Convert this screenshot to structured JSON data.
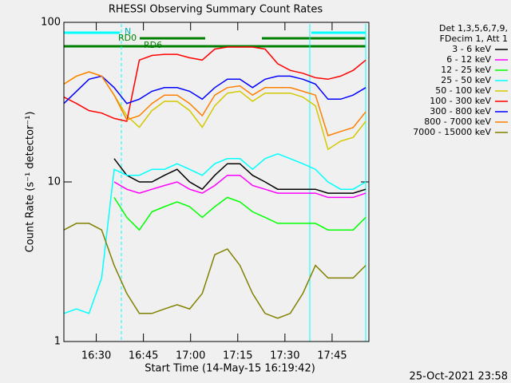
{
  "chart_data": {
    "type": "line",
    "title": "RHESSI Observing Summary Count Rates",
    "xlabel": "Start Time (14-May-15 16:19:42)",
    "ylabel": "Count Rate (s⁻¹ detector⁻¹)",
    "legend_title": [
      "Det 1,3,5,6,7,9,",
      "FDecim 1, Att 1"
    ],
    "footer": "25-Oct-2021 23:58",
    "annotations": [
      "N",
      "RD0",
      "RD6"
    ],
    "log_y": true,
    "legend": "right",
    "xlim": [
      0,
      97
    ],
    "xticks": [
      {
        "value": 10.3,
        "label": "16:30"
      },
      {
        "value": 25.3,
        "label": "16:45"
      },
      {
        "value": 40.3,
        "label": "17:00"
      },
      {
        "value": 55.3,
        "label": "17:15"
      },
      {
        "value": 70.3,
        "label": "17:30"
      },
      {
        "value": 85.3,
        "label": "17:45"
      }
    ],
    "ylim": [
      1,
      100
    ],
    "yticks": [
      1,
      10,
      100
    ],
    "x": [
      0,
      4,
      8,
      12,
      16,
      20,
      24,
      28,
      32,
      36,
      40,
      44,
      48,
      52,
      56,
      60,
      64,
      68,
      72,
      76,
      80,
      84,
      88,
      92,
      96
    ],
    "series": [
      {
        "name": "3 - 6 keV",
        "color": "#000000",
        "values": [
          null,
          null,
          null,
          null,
          14,
          11,
          10,
          10,
          11,
          12,
          10,
          9,
          11,
          13,
          13,
          11,
          10,
          9,
          9,
          9,
          9,
          8.5,
          8.5,
          8.5,
          9
        ]
      },
      {
        "name": "6 - 12 keV",
        "color": "#ff00ff",
        "values": [
          null,
          null,
          null,
          null,
          10,
          9,
          8.5,
          9,
          9.5,
          10,
          9,
          8.5,
          9.5,
          11,
          11,
          9.5,
          9,
          8.5,
          8.5,
          8.5,
          8.5,
          8,
          8,
          8,
          8.5
        ]
      },
      {
        "name": "12 - 25 keV",
        "color": "#00ff00",
        "values": [
          null,
          null,
          null,
          null,
          8,
          6,
          5,
          6.5,
          7,
          7.5,
          7,
          6,
          7,
          8,
          7.5,
          6.5,
          6,
          5.5,
          5.5,
          5.5,
          5.5,
          5,
          5,
          5,
          6
        ]
      },
      {
        "name": "25 - 50 keV",
        "color": "#00ffff",
        "values": [
          1.5,
          1.6,
          1.5,
          2.5,
          12,
          11,
          11,
          12,
          12,
          13,
          12,
          11,
          13,
          14,
          14,
          12,
          14,
          15,
          14,
          13,
          12,
          10,
          9,
          9,
          10
        ]
      },
      {
        "name": "50 - 100 keV",
        "color": "#d4c800",
        "values": [
          41,
          46,
          49,
          46,
          35,
          26,
          22,
          28,
          32,
          32,
          28,
          22,
          30,
          36,
          37,
          32,
          36,
          36,
          36,
          34,
          30,
          16,
          18,
          19,
          24
        ]
      },
      {
        "name": "100 - 300 keV",
        "color": "#ff0000",
        "values": [
          34,
          31,
          28,
          27,
          25,
          24,
          58,
          62,
          63,
          63,
          60,
          58,
          68,
          70,
          70,
          70,
          68,
          55,
          50,
          48,
          45,
          44,
          46,
          50,
          58
        ]
      },
      {
        "name": "300 - 800 keV",
        "color": "#0000ff",
        "values": [
          31,
          37,
          44,
          46,
          39,
          31,
          33,
          37,
          39,
          39,
          37,
          33,
          39,
          44,
          44,
          39,
          44,
          46,
          46,
          44,
          41,
          33,
          33,
          35,
          39
        ]
      },
      {
        "name": "800 - 7000 keV",
        "color": "#ff8000",
        "values": [
          41,
          46,
          49,
          46,
          35,
          24.5,
          26,
          31,
          35,
          35,
          31,
          26,
          35,
          39,
          40,
          35,
          39,
          39,
          39,
          37,
          35,
          19.5,
          20.7,
          21.9,
          27.5
        ]
      },
      {
        "name": "7000 - 15000 keV",
        "color": "#808000",
        "values": [
          5,
          5.5,
          5.5,
          5,
          3,
          2,
          1.5,
          1.5,
          1.6,
          1.7,
          1.6,
          2,
          3.5,
          3.8,
          3,
          2,
          1.5,
          1.4,
          1.5,
          2,
          3,
          2.5,
          2.5,
          2.5,
          3
        ]
      }
    ]
  }
}
